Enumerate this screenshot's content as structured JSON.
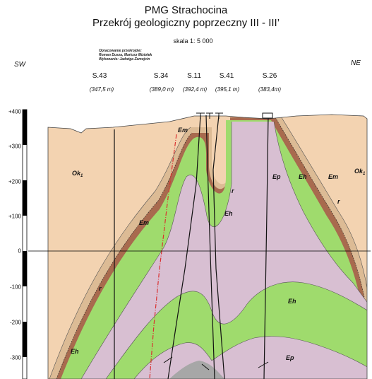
{
  "header": {
    "title": "PMG Strachocina",
    "subtitle": "Przekrój geologiczny poprzeczny III - III’",
    "scale": "skala 1: 5 000",
    "credits": [
      "Opracowanie przekrojów:",
      "Roman Dusza, Mariusz Miziołek",
      "Wykonanie: Jadwiga Zamojcin"
    ]
  },
  "orientation": {
    "left": "SW",
    "right": "NE"
  },
  "wells": [
    {
      "name": "S.43",
      "elevation": "(347,5 m)"
    },
    {
      "name": "S.34",
      "elevation": "(389,0 m)"
    },
    {
      "name": "S.11",
      "elevation": "(392,4 m)"
    },
    {
      "name": "S.41",
      "elevation": "(395,1 m)"
    },
    {
      "name": "S.26",
      "elevation": "(383,4m)"
    }
  ],
  "depth_axis": {
    "ticks": [
      "+400",
      "+300",
      "+200",
      "+100",
      "0",
      "-100",
      "-200",
      "-300"
    ]
  },
  "units": {
    "ok1_left": "Ok",
    "ok1_right": "Ok",
    "ok1_sub": "1",
    "em_top": "Em",
    "em_left": "Em",
    "em_right": "Em",
    "eh_right": "Eh",
    "eh_center": "Eh",
    "eh_mid": "Eh",
    "eh_left": "Eh",
    "eh_bottom": "Eh",
    "ep_upper": "Ep",
    "ep_lower": "Ep",
    "r_center": "r",
    "r_left": "r",
    "r_right": "r"
  },
  "colors": {
    "ok1": "#f3d3b1",
    "em": "#dcbb95",
    "r": "#a86a4e",
    "eh": "#9fdb6d",
    "ep": "#d8bfd2",
    "core": "#a7a7a7"
  }
}
